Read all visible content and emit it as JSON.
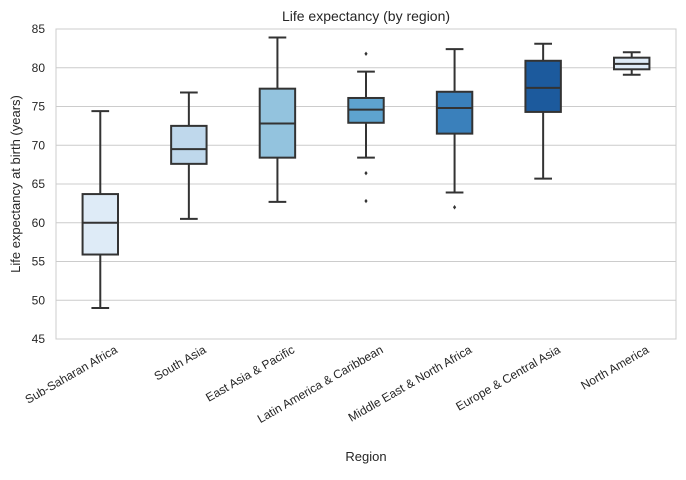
{
  "chart_data": {
    "type": "box",
    "title": "Life expectancy (by region)",
    "xlabel": "Region",
    "ylabel": "Life expectancy at birth (years)",
    "ylim": [
      45,
      85
    ],
    "yticks": [
      45,
      50,
      55,
      60,
      65,
      70,
      75,
      80,
      85
    ],
    "grid": "horizontal",
    "categories": [
      "Sub-Saharan Africa",
      "South Asia",
      "East Asia & Pacific",
      "Latin America & Caribbean",
      "Middle East & North Africa",
      "Europe & Central Asia",
      "North America"
    ],
    "boxes": [
      {
        "whisker_low": 49.0,
        "q1": 55.9,
        "median": 60.0,
        "q3": 63.7,
        "whisker_high": 74.4,
        "outliers": [],
        "color": "#deebf7"
      },
      {
        "whisker_low": 60.5,
        "q1": 67.6,
        "median": 69.5,
        "q3": 72.5,
        "whisker_high": 76.8,
        "outliers": [],
        "color": "#bfd8ec"
      },
      {
        "whisker_low": 62.7,
        "q1": 68.4,
        "median": 72.8,
        "q3": 77.3,
        "whisker_high": 83.9,
        "outliers": [],
        "color": "#93c3de"
      },
      {
        "whisker_low": 68.4,
        "q1": 72.9,
        "median": 74.6,
        "q3": 76.1,
        "whisker_high": 79.5,
        "outliers": [
          81.8,
          66.4,
          62.8
        ],
        "color": "#5ea3cf"
      },
      {
        "whisker_low": 63.9,
        "q1": 71.5,
        "median": 74.8,
        "q3": 76.9,
        "whisker_high": 82.4,
        "outliers": [
          62.0
        ],
        "color": "#3a80bb"
      },
      {
        "whisker_low": 65.7,
        "q1": 74.3,
        "median": 77.4,
        "q3": 80.9,
        "whisker_high": 83.1,
        "outliers": [],
        "color": "#1c5a9d"
      },
      {
        "whisker_low": 79.1,
        "q1": 79.8,
        "median": 80.5,
        "q3": 81.3,
        "whisker_high": 82.0,
        "outliers": [],
        "color": "#deebf7"
      }
    ],
    "line_color": "#333333",
    "grid_color": "#cccccc",
    "spine_color": "#cccccc"
  }
}
